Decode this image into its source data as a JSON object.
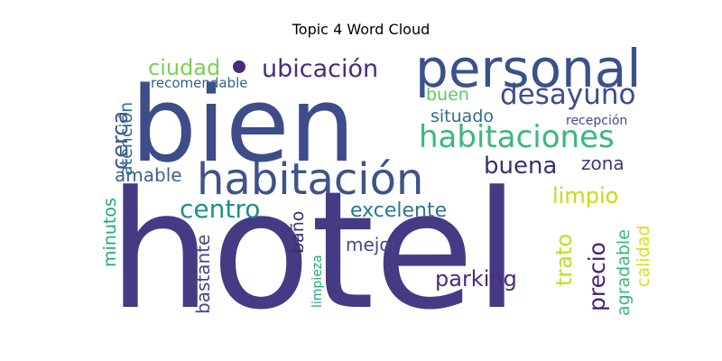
{
  "chart_data": {
    "type": "wordcloud",
    "title": "Topic 4 Word Cloud",
    "words": [
      {
        "text": "hotel",
        "color": "#453b85"
      },
      {
        "text": "bien",
        "color": "#3e4c8a"
      },
      {
        "text": "personal",
        "color": "#3a518b"
      },
      {
        "text": "habitación",
        "color": "#3f5389"
      },
      {
        "text": "habitaciones",
        "color": "#3bb87a"
      },
      {
        "text": "desayuno",
        "color": "#3e4c8a"
      },
      {
        "text": "ubicación",
        "color": "#472d7b"
      },
      {
        "text": "ciudad",
        "color": "#7ad151"
      },
      {
        "text": "buena",
        "color": "#3b2f70"
      },
      {
        "text": "centro",
        "color": "#1f8f8c"
      },
      {
        "text": "excelente",
        "color": "#2a788e"
      },
      {
        "text": "cerca",
        "color": "#3b528b"
      },
      {
        "text": "amable",
        "color": "#3e6189"
      },
      {
        "text": "limpio",
        "color": "#c4dc1a"
      },
      {
        "text": "precio",
        "color": "#482272"
      },
      {
        "text": "zona",
        "color": "#3f3a78"
      },
      {
        "text": "parking",
        "color": "#472d7b"
      },
      {
        "text": "trato",
        "color": "#bddf26"
      },
      {
        "text": "buen",
        "color": "#5ec962"
      },
      {
        "text": "situado",
        "color": "#2e6e8e"
      },
      {
        "text": "mejor",
        "color": "#3e4c8a"
      },
      {
        "text": "minutos",
        "color": "#22a884"
      },
      {
        "text": "atención",
        "color": "#2e6e8e"
      },
      {
        "text": "bastante",
        "color": "#3f4a8a"
      },
      {
        "text": "baño",
        "color": "#3e2d6e"
      },
      {
        "text": "agradable",
        "color": "#3bb87a"
      },
      {
        "text": "calidad",
        "color": "#d8e219"
      },
      {
        "text": "recomendable",
        "color": "#34618d"
      },
      {
        "text": "recepción",
        "color": "#3e4c8a"
      },
      {
        "text": "limpieza",
        "color": "#22a884"
      }
    ]
  }
}
